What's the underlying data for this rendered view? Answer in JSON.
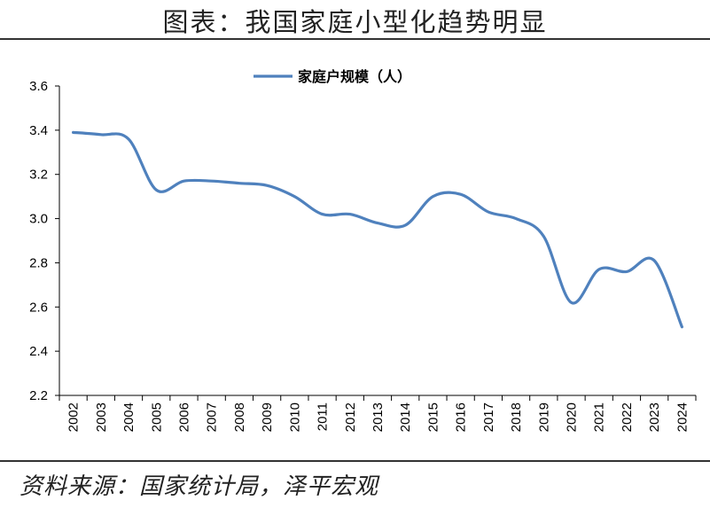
{
  "header": {
    "title": "图表：我国家庭小型化趋势明显"
  },
  "footer": {
    "source": "资料来源：国家统计局，泽平宏观"
  },
  "chart_data": {
    "type": "line",
    "title": "",
    "xlabel": "",
    "ylabel": "",
    "categories": [
      "2002",
      "2003",
      "2004",
      "2005",
      "2006",
      "2007",
      "2008",
      "2009",
      "2010",
      "2011",
      "2012",
      "2013",
      "2014",
      "2015",
      "2016",
      "2017",
      "2018",
      "2019",
      "2020",
      "2021",
      "2022",
      "2023",
      "2024"
    ],
    "series": [
      {
        "name": "家庭户规模（人）",
        "color": "#4F81BD",
        "values": [
          3.39,
          3.38,
          3.36,
          3.13,
          3.17,
          3.17,
          3.16,
          3.15,
          3.1,
          3.02,
          3.02,
          2.98,
          2.97,
          3.1,
          3.11,
          3.03,
          3.0,
          2.92,
          2.62,
          2.77,
          2.76,
          2.81,
          2.51
        ]
      }
    ],
    "ylim": [
      2.2,
      3.6
    ],
    "yticks": [
      "2.2",
      "2.4",
      "2.6",
      "2.8",
      "3.0",
      "3.2",
      "3.4",
      "3.6"
    ],
    "smoothed": true,
    "grid": false,
    "legend_position": "top-center"
  }
}
